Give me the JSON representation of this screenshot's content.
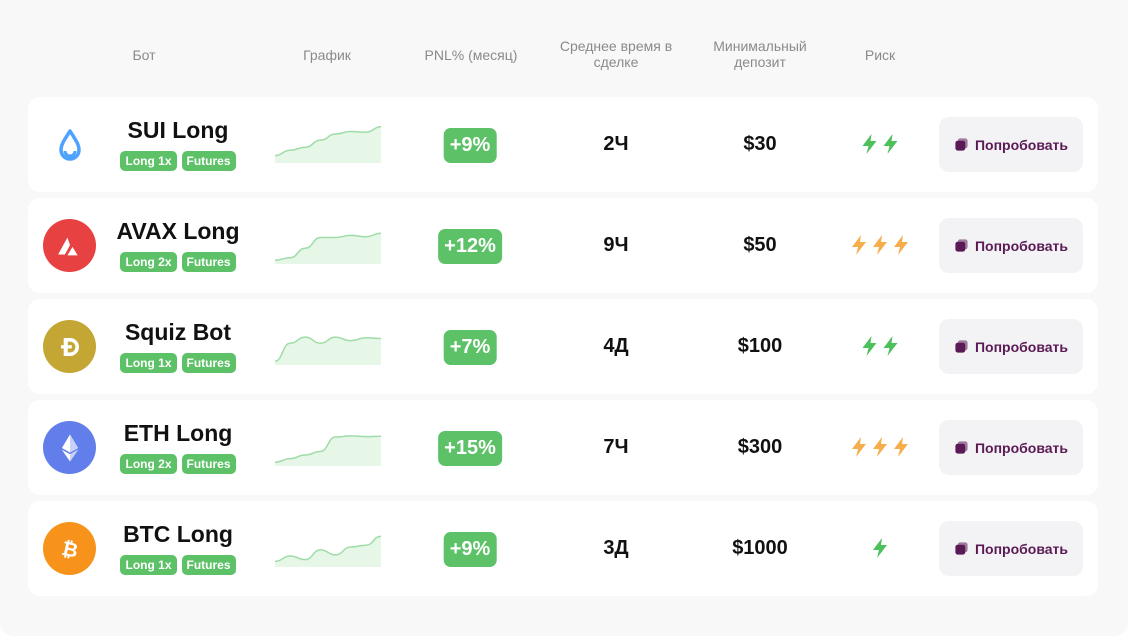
{
  "header": {
    "bot": "Бот",
    "chart": "График",
    "pnl": "PNL% (месяц)",
    "avg_time_line1": "Среднее время в",
    "avg_time_line2": "сделке",
    "min_dep_line1": "Минимальный",
    "min_dep_line2": "депозит",
    "risk": "Риск"
  },
  "colors": {
    "green": "#5cc167",
    "risk_green": "#4cc05a",
    "risk_orange": "#f6ad4c",
    "button_text": "#5a1a55"
  },
  "rows": [
    {
      "icon": "sui-droplet-icon",
      "name": "SUI Long",
      "tags": [
        "Long 1x",
        "Futures"
      ],
      "pnl": "+9%",
      "time": "2Ч",
      "deposit": "$30",
      "risk_level": 2,
      "risk_color": "green",
      "button": "Попробовать",
      "spark": [
        0.15,
        0.3,
        0.38,
        0.58,
        0.75,
        0.82,
        0.8,
        0.95
      ]
    },
    {
      "icon": "avax-icon",
      "name": "AVAX Long",
      "tags": [
        "Long 2x",
        "Futures"
      ],
      "pnl": "+12%",
      "time": "9Ч",
      "deposit": "$50",
      "risk_level": 3,
      "risk_color": "orange",
      "button": "Попробовать",
      "spark": [
        0.05,
        0.12,
        0.38,
        0.68,
        0.68,
        0.74,
        0.7,
        0.8
      ]
    },
    {
      "icon": "dogecoin-icon",
      "name": "Squiz Bot",
      "tags": [
        "Long 1x",
        "Futures"
      ],
      "pnl": "+7%",
      "time": "4Д",
      "deposit": "$100",
      "risk_level": 2,
      "risk_color": "green",
      "button": "Попробовать",
      "spark": [
        0.05,
        0.55,
        0.72,
        0.55,
        0.72,
        0.62,
        0.7,
        0.68
      ]
    },
    {
      "icon": "ethereum-icon",
      "name": "ETH Long",
      "tags": [
        "Long 2x",
        "Futures"
      ],
      "pnl": "+15%",
      "time": "7Ч",
      "deposit": "$300",
      "risk_level": 3,
      "risk_color": "orange",
      "button": "Попробовать",
      "spark": [
        0.05,
        0.15,
        0.25,
        0.35,
        0.75,
        0.78,
        0.76,
        0.77
      ]
    },
    {
      "icon": "bitcoin-icon",
      "name": "BTC Long",
      "tags": [
        "Long 1x",
        "Futures"
      ],
      "pnl": "+9%",
      "time": "3Д",
      "deposit": "$1000",
      "risk_level": 1,
      "risk_color": "green",
      "button": "Попробовать",
      "spark": [
        0.1,
        0.25,
        0.15,
        0.42,
        0.28,
        0.5,
        0.55,
        0.8
      ]
    }
  ]
}
